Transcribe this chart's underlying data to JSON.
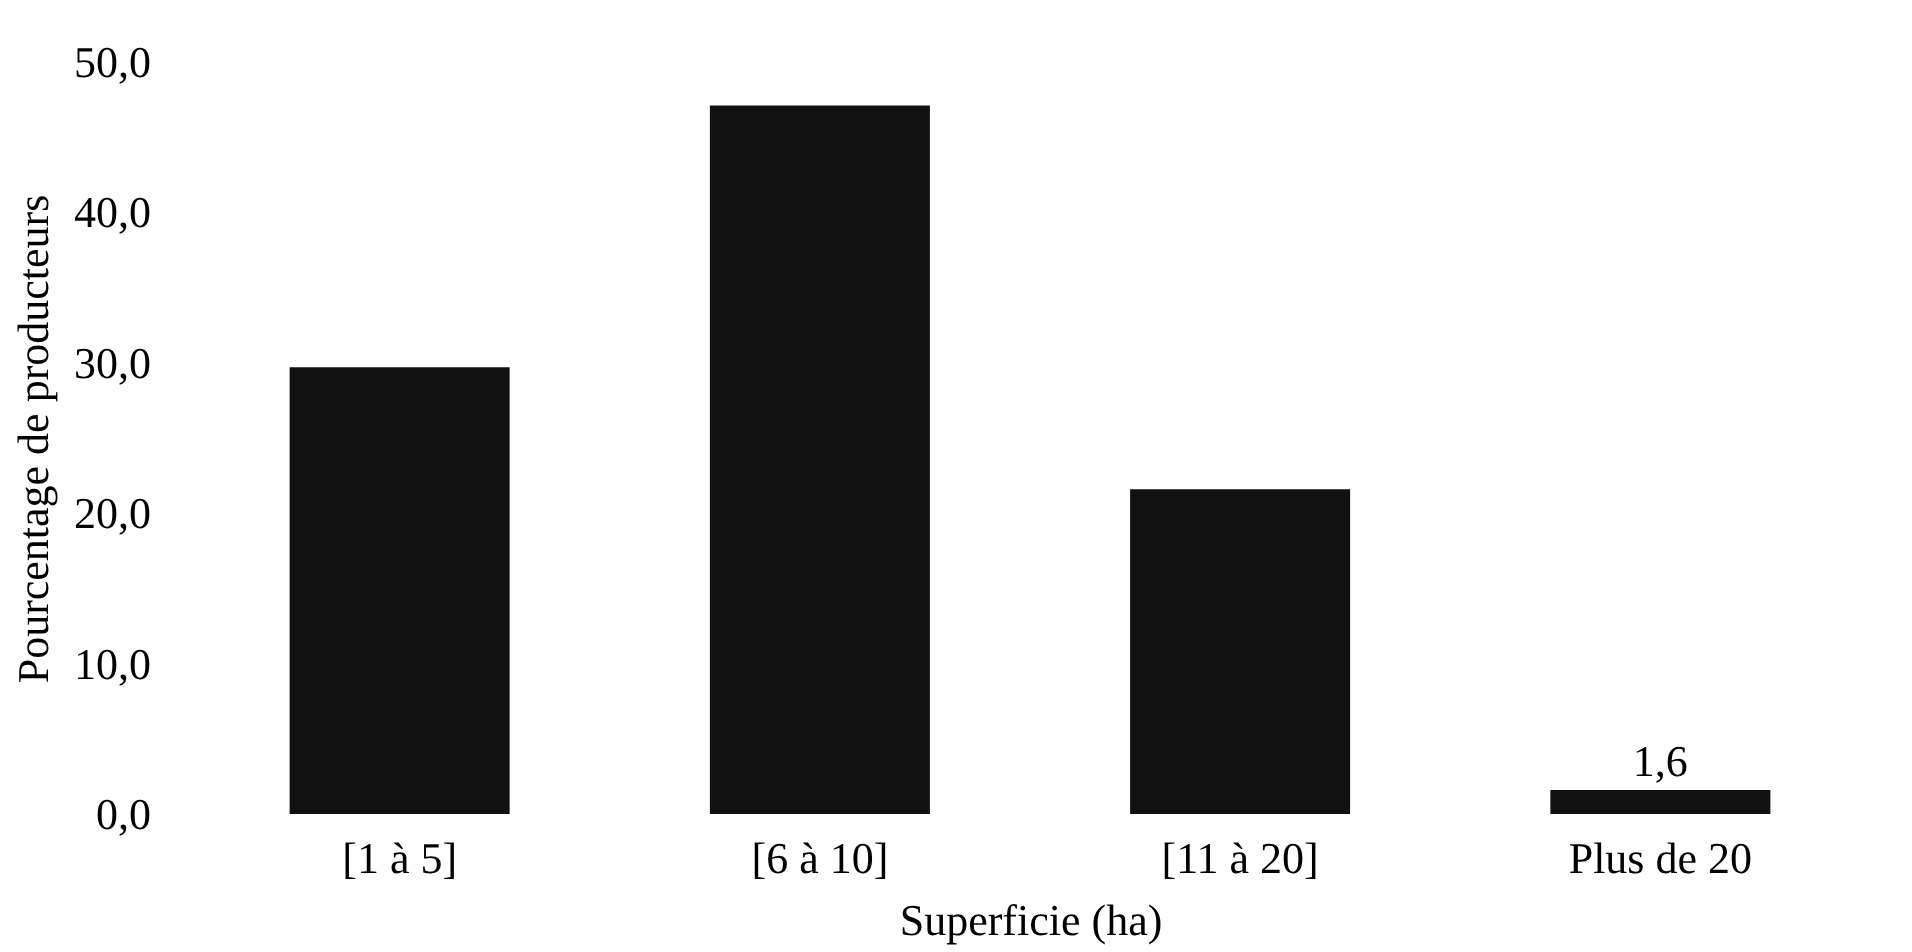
{
  "chart_data": {
    "type": "bar",
    "xlabel": "Superficie (ha)",
    "ylabel": "Pourcentage de producteurs",
    "categories": [
      "[1 à 5]",
      "[6 à 10]",
      "[11 à 20]",
      "Plus de 20"
    ],
    "values": [
      29.7,
      47.1,
      21.6,
      1.6
    ],
    "color": "#111111",
    "value_labels": [
      null,
      null,
      null,
      "1,6"
    ],
    "ylim": [
      0,
      50
    ],
    "yticks": [
      {
        "value": 0,
        "label": "0,0"
      },
      {
        "value": 10,
        "label": "10,0"
      },
      {
        "value": 20,
        "label": "20,0"
      },
      {
        "value": 30,
        "label": "30,0"
      },
      {
        "value": 40,
        "label": "40,0"
      },
      {
        "value": 50,
        "label": "50,0"
      }
    ],
    "grid": false
  }
}
